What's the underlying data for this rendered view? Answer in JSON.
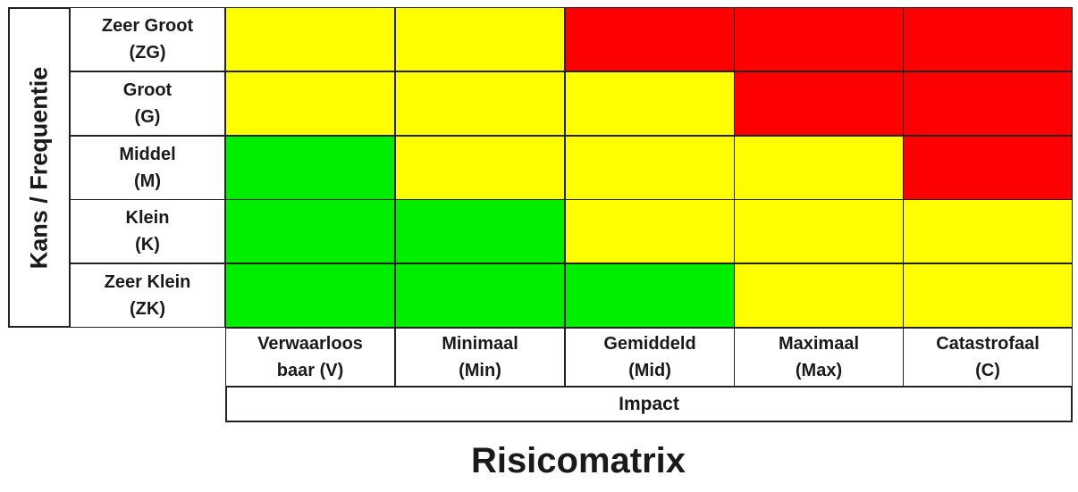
{
  "colors": {
    "green": "#00ee00",
    "yellow": "#ffff00",
    "red": "#ff0000"
  },
  "y_axis": {
    "title": "Kans / Frequentie"
  },
  "x_axis": {
    "title": "Impact"
  },
  "caption": "Risicomatrix",
  "rows": [
    {
      "name": "Zeer Groot",
      "code": "(ZG)",
      "levels": [
        "yellow",
        "yellow",
        "red",
        "red",
        "red"
      ]
    },
    {
      "name": "Groot",
      "code": "(G)",
      "levels": [
        "yellow",
        "yellow",
        "yellow",
        "red",
        "red"
      ]
    },
    {
      "name": "Middel",
      "code": "(M)",
      "levels": [
        "green",
        "yellow",
        "yellow",
        "yellow",
        "red"
      ]
    },
    {
      "name": "Klein",
      "code": "(K)",
      "levels": [
        "green",
        "green",
        "yellow",
        "yellow",
        "yellow"
      ]
    },
    {
      "name": "Zeer Klein",
      "code": "(ZK)",
      "levels": [
        "green",
        "green",
        "green",
        "yellow",
        "yellow"
      ]
    }
  ],
  "columns": [
    {
      "line1": "Verwaarloos",
      "line2": "baar (V)"
    },
    {
      "line1": "Minimaal",
      "line2": "(Min)"
    },
    {
      "line1": "Gemiddeld",
      "line2": "(Mid)"
    },
    {
      "line1": "Maximaal",
      "line2": "(Max)"
    },
    {
      "line1": "Catastrofaal",
      "line2": "(C)"
    }
  ]
}
